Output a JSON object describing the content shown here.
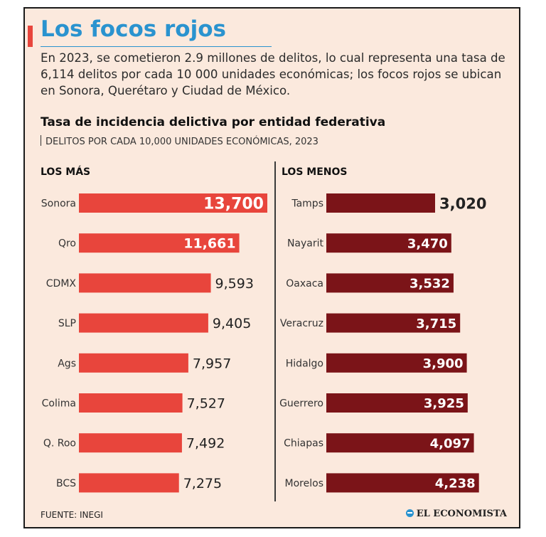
{
  "header": {
    "title": "Los focos rojos",
    "intro": "En 2023, se cometieron 2.9 millones de delitos, lo cual representa una tasa de 6,114 delitos por cada 10 000 unidades económicas; los focos rojos se ubican en Sonora, Querétaro y Ciudad de México."
  },
  "chart_data": {
    "type": "bar",
    "orientation": "horizontal",
    "title": "Tasa de incidencia delictiva por entidad federativa",
    "subtitle": "DELITOS POR CADA 10,000 UNIDADES ECONÓMICAS, 2023",
    "xlabel": "",
    "ylabel": "",
    "grid": false,
    "panels": [
      {
        "name": "LOS MÁS",
        "color": "#e8453c",
        "label_color_inside": "#ffffff",
        "categories": [
          "Sonora",
          "Qro",
          "CDMX",
          "SLP",
          "Ags",
          "Colima",
          "Q. Roo",
          "BCS"
        ],
        "values": [
          13700,
          11661,
          9593,
          9405,
          7957,
          7527,
          7492,
          7275
        ],
        "labels": [
          "13,700",
          "11,661",
          "9,593",
          "9,405",
          "7,957",
          "7,527",
          "7,492",
          "7,275"
        ]
      },
      {
        "name": "LOS MENOS",
        "color": "#7b1418",
        "label_color_inside": "#ffffff",
        "categories": [
          "Tamps",
          "Nayarit",
          "Oaxaca",
          "Veracruz",
          "Hidalgo",
          "Guerrero",
          "Chiapas",
          "Morelos"
        ],
        "values": [
          3020,
          3470,
          3532,
          3715,
          3900,
          3925,
          4097,
          4238
        ],
        "labels": [
          "3,020",
          "3,470",
          "3,532",
          "3,715",
          "3,900",
          "3,925",
          "4,097",
          "4,238"
        ]
      }
    ]
  },
  "footer": {
    "source": "FUENTE: INEGI",
    "brand": "EL ECONOMISTA"
  }
}
